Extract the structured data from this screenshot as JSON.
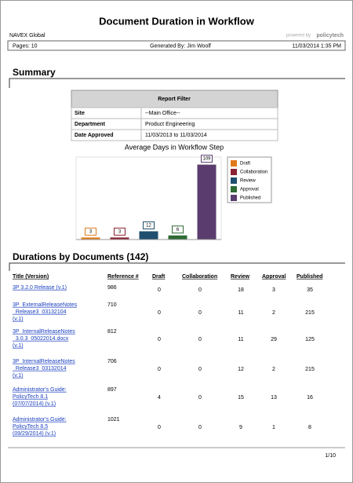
{
  "header": {
    "title": "Document Duration in Workflow",
    "company": "NAVEX Global",
    "powered_by": "powered by",
    "brand": "policytech",
    "pages": "Pages: 10",
    "generated_by": "Generated By: Jim Woolf",
    "generated_at": "11/03/2014 1:35 PM"
  },
  "summary": {
    "heading": "Summary",
    "filter": {
      "title": "Report Filter",
      "rows": [
        [
          "Site",
          "--Main Office--"
        ],
        [
          "Department",
          "Product Engineering"
        ],
        [
          "Date Approved",
          "11/03/2013 to 11/03/2014"
        ]
      ]
    }
  },
  "chart_data": {
    "type": "bar",
    "title": "Average Days in Workflow Step",
    "categories": [
      "Draft",
      "Collaboration",
      "Review",
      "Approval",
      "Published"
    ],
    "values": [
      3,
      3,
      12,
      6,
      109
    ],
    "colors": [
      "#e07b1a",
      "#8b2232",
      "#1f4e6e",
      "#2e6b35",
      "#5a3d6e"
    ],
    "ylim": [
      0,
      120
    ],
    "legend": "right"
  },
  "durations": {
    "heading": "Durations by Documents (142)",
    "columns": [
      "Title (Version)",
      "Reference #",
      "Draft",
      "Collaboration",
      "Review",
      "Approval",
      "Published"
    ],
    "rows": [
      [
        [
          "3P 3.2.0 Release  (v.1)"
        ],
        986,
        0,
        0,
        18,
        3,
        35
      ],
      [
        [
          "3P_ExternalReleaseNotes",
          "_Release3_03132104",
          "(v.1)"
        ],
        710,
        0,
        0,
        11,
        2,
        215
      ],
      [
        [
          "3P_InternalReleaseNotes",
          "_3.0.3_05022014.docx",
          "(v.1)"
        ],
        812,
        0,
        0,
        11,
        29,
        125
      ],
      [
        [
          "3P_InternalReleaseNotes",
          "_Release3_03132014",
          "(v.1)"
        ],
        706,
        0,
        0,
        12,
        2,
        215
      ],
      [
        [
          "Administrator's Guide:",
          "PolicyTech 8.1",
          "(07/07/2014) (v.1)"
        ],
        897,
        4,
        0,
        15,
        13,
        16
      ],
      [
        [
          "Administrator's Guide:",
          "PolicyTech 8.5",
          "(09/29/2014) (v.1)"
        ],
        1021,
        0,
        0,
        9,
        1,
        8
      ]
    ]
  },
  "footer": {
    "page": "1/10"
  }
}
